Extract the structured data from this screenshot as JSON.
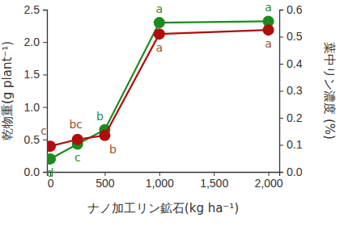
{
  "chart_data": {
    "type": "line",
    "x_label": "ナノ加工リン鉱石(kg ha⁻¹)",
    "y_label": "乾物重(g plant⁻¹)",
    "y2_label": "葉中リン濃度 (%)",
    "x": [
      0,
      250,
      500,
      1000,
      2000
    ],
    "xlim": [
      -30,
      2100
    ],
    "xticks": [
      0,
      500,
      {
        "value": 1000,
        "label": "1,000"
      },
      {
        "value": 1500,
        "label": "1,500"
      },
      {
        "value": 2000,
        "label": "2,000"
      }
    ],
    "ylim": [
      0,
      2.5
    ],
    "yticks": [
      {
        "value": 0,
        "label": "0.0"
      },
      0.5,
      {
        "value": 1,
        "label": "1.0"
      },
      1.5,
      {
        "value": 2,
        "label": "2.0"
      },
      2.5
    ],
    "y2lim": [
      0,
      0.6
    ],
    "y2ticks": [
      {
        "value": 0,
        "label": "0.0"
      },
      0.1,
      0.2,
      0.3,
      0.4,
      0.5,
      0.6
    ],
    "marker": "circle",
    "series": [
      {
        "color": "#1e8a1e",
        "values": [
          0.2,
          0.43,
          0.65,
          2.3,
          2.32
        ],
        "annotations": [
          "d",
          "c",
          "b",
          "a",
          "a"
        ]
      },
      {
        "color": "#b00d0d",
        "axis": "y2",
        "values": [
          0.095,
          0.12,
          0.135,
          0.51,
          0.525
        ],
        "annotations": [
          "c",
          "bc",
          "b",
          "a",
          "a"
        ]
      }
    ]
  }
}
